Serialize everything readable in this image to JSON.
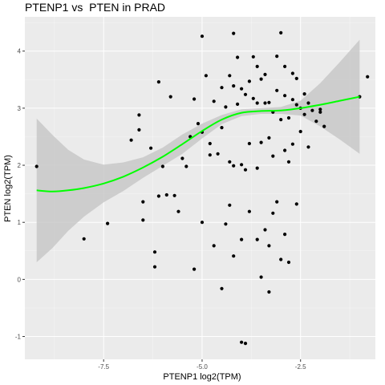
{
  "chart_data": {
    "type": "scatter",
    "title": "PTENP1 vs  PTEN in PRAD",
    "xlabel": "PTENP1 log2(TPM)",
    "ylabel": "PTEN log2(TPM)",
    "xlim": [
      -9.5,
      -0.6
    ],
    "ylim": [
      -1.4,
      4.6
    ],
    "x_ticks": [
      -7.5,
      -5.0,
      -2.5
    ],
    "x_tick_labels": [
      "-7.5",
      "-5.0",
      "-2.5"
    ],
    "y_ticks": [
      -1,
      0,
      1,
      2,
      3,
      4
    ],
    "y_tick_labels": [
      "-1",
      "0",
      "1",
      "2",
      "3",
      "4"
    ],
    "grid": true,
    "colors": {
      "panel": "#ebebeb",
      "grid_major": "#ffffff",
      "points": "#000000",
      "smooth_line": "#00ff00",
      "confidence_band": "#c8c8c8"
    },
    "smooth": {
      "x": [
        -9.2,
        -8.8,
        -8.4,
        -8.0,
        -7.5,
        -7.0,
        -6.5,
        -6.0,
        -5.5,
        -5.0,
        -4.5,
        -4.0,
        -3.5,
        -3.0,
        -2.5,
        -2.0,
        -1.5,
        -1.0
      ],
      "y": [
        1.56,
        1.54,
        1.56,
        1.6,
        1.68,
        1.8,
        1.96,
        2.15,
        2.37,
        2.6,
        2.8,
        2.92,
        2.95,
        2.96,
        3.0,
        3.06,
        3.13,
        3.2
      ],
      "ymin": [
        0.3,
        0.55,
        0.85,
        1.1,
        1.35,
        1.55,
        1.78,
        1.99,
        2.2,
        2.47,
        2.72,
        2.86,
        2.9,
        2.9,
        2.87,
        2.68,
        2.45,
        2.2
      ],
      "ymax": [
        2.82,
        2.53,
        2.27,
        2.1,
        2.01,
        2.05,
        2.14,
        2.31,
        2.54,
        2.73,
        2.88,
        2.98,
        3.0,
        3.02,
        3.13,
        3.44,
        3.81,
        4.2
      ]
    },
    "points": {
      "x": [
        -9.2,
        -8.0,
        -7.4,
        -6.8,
        -6.6,
        -6.6,
        -6.5,
        -6.3,
        -6.2,
        -6.1,
        -6.0,
        -5.9,
        -5.8,
        -5.6,
        -5.5,
        -5.4,
        -5.3,
        -5.2,
        -5.1,
        -5.0,
        -4.9,
        -4.8,
        -4.7,
        -4.6,
        -4.5,
        -4.4,
        -4.3,
        -4.2,
        -4.1,
        -4.0,
        -3.9,
        -3.8,
        -3.7,
        -3.6,
        -3.5,
        -3.4,
        -3.3,
        -3.2,
        -3.1,
        -3.0,
        -2.9,
        -2.8,
        -2.7,
        -2.6,
        -2.5,
        -2.4,
        -2.3,
        -2.2,
        -2.1,
        -2.0,
        -1.0,
        -0.8,
        -6.1,
        -5.0,
        -4.2,
        -4.1,
        -3.7,
        -3.6,
        -3.4,
        -3.1,
        -3.0,
        -2.9,
        -2.7,
        -2.6,
        -2.4,
        -5.0,
        -4.8,
        -4.5,
        -4.3,
        -4.2,
        -4.0,
        -3.9,
        -3.8,
        -3.6,
        -3.5,
        -3.3,
        -3.2,
        -2.9,
        -2.8,
        -2.7,
        -2.5,
        -2.3,
        -2.0,
        -1.9,
        -6.5,
        -6.2,
        -5.7,
        -5.2,
        -4.7,
        -4.4,
        -4.3,
        -4.2,
        -4.0,
        -3.8,
        -3.6,
        -3.4,
        -3.3,
        -3.1,
        -3.0,
        -2.8,
        -2.6,
        -4.5,
        -4.0,
        -3.9,
        -3.5,
        -3.3,
        -3.2,
        -2.9
      ],
      "y": [
        1.98,
        0.71,
        0.98,
        2.44,
        2.62,
        2.88,
        1.36,
        2.3,
        0.22,
        3.46,
        1.98,
        1.48,
        3.2,
        1.19,
        2.12,
        1.98,
        2.5,
        3.16,
        2.73,
        1.0,
        3.57,
        2.38,
        3.12,
        2.2,
        3.36,
        3.02,
        3.57,
        3.39,
        3.07,
        3.34,
        3.24,
        3.47,
        3.17,
        3.09,
        3.51,
        3.09,
        3.1,
        2.93,
        3.31,
        2.8,
        3.22,
        2.83,
        3.15,
        3.06,
        3.0,
        2.89,
        3.09,
        2.96,
        2.77,
        2.98,
        3.2,
        3.55,
        1.46,
        4.26,
        4.31,
        3.89,
        3.9,
        3.73,
        3.59,
        3.91,
        4.32,
        3.73,
        3.61,
        3.52,
        3.25,
        2.58,
        2.18,
        2.66,
        2.06,
        1.99,
        2.01,
        1.92,
        2.38,
        1.95,
        2.4,
        2.48,
        2.16,
        2.26,
        2.06,
        2.37,
        2.59,
        2.32,
        2.93,
        2.68,
        1.04,
        0.48,
        1.47,
        0.18,
        0.59,
        0.97,
        1.3,
        0.41,
        0.7,
        1.19,
        0.7,
        0.87,
        0.59,
        1.36,
        0.35,
        0.3,
        1.32,
        -0.16,
        -1.1,
        -1.12,
        0.04,
        -0.22,
        1.16,
        0.79
      ]
    }
  }
}
